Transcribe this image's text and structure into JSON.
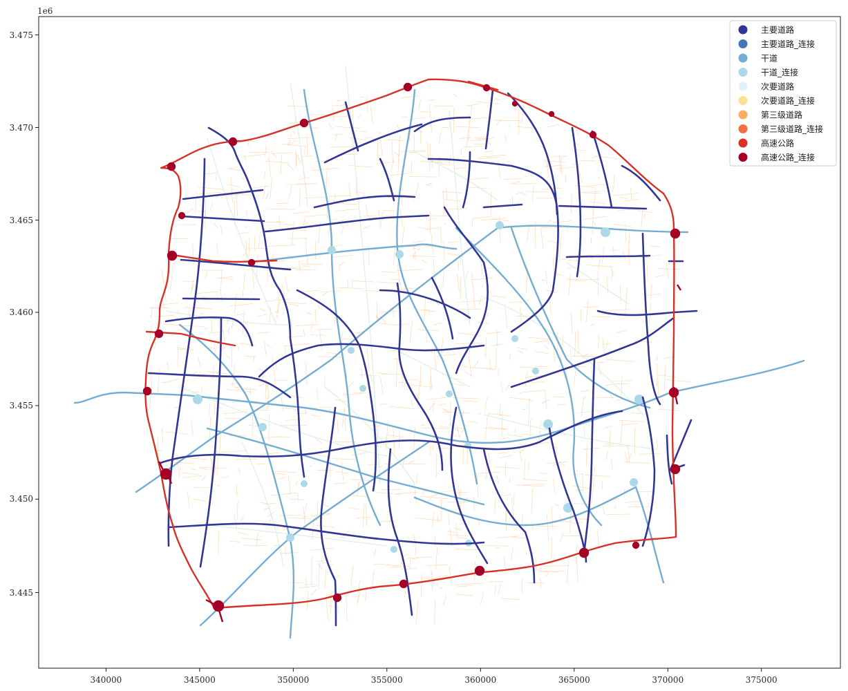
{
  "figure": {
    "offset_label": "1e6",
    "x_ticks": [
      "340000",
      "345000",
      "350000",
      "355000",
      "360000",
      "365000",
      "370000",
      "375000"
    ],
    "y_ticks": [
      "3.445",
      "3.450",
      "3.455",
      "3.460",
      "3.465",
      "3.470",
      "3.475"
    ]
  },
  "map_data": {
    "x_range": [
      336200,
      379500
    ],
    "y_range": [
      3440400,
      3476700
    ],
    "legend_placement": "top-right",
    "legend": [
      {
        "label": "主要道路",
        "color": "#313695"
      },
      {
        "label": "主要道路_连接",
        "color": "#4575b4"
      },
      {
        "label": "干道",
        "color": "#74add1"
      },
      {
        "label": "干道_连接",
        "color": "#abd9e9"
      },
      {
        "label": "次要道路",
        "color": "#e0f3f8"
      },
      {
        "label": "次要道路_连接",
        "color": "#fee090"
      },
      {
        "label": "第三级道路",
        "color": "#fdae61"
      },
      {
        "label": "第三级道路_连接",
        "color": "#f46d43"
      },
      {
        "label": "高速公路",
        "color": "#d73027"
      },
      {
        "label": "高速公路_连接",
        "color": "#a50026"
      }
    ]
  }
}
